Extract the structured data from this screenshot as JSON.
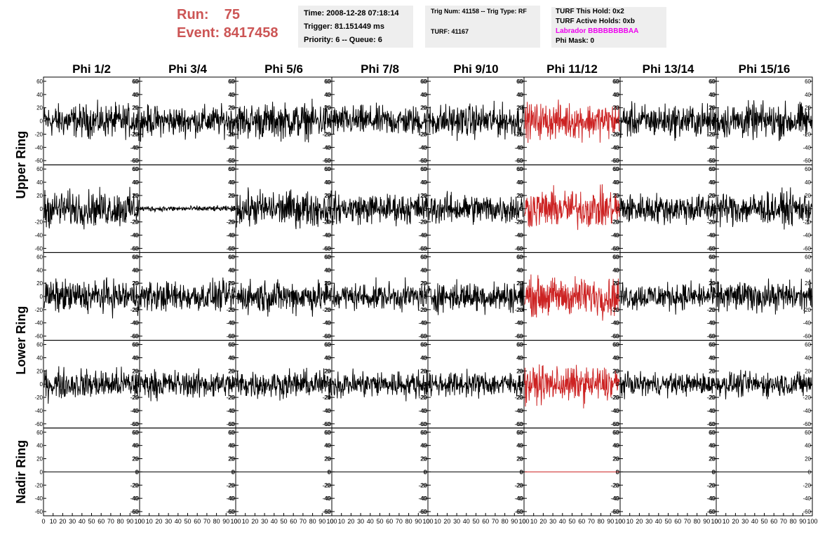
{
  "header": {
    "run_label": "Run:",
    "run_value": "75",
    "event_label": "Event:",
    "event_value": "8417458",
    "time": "Time: 2008-12-28 07:18:14",
    "trigger": "Trigger: 81.151449 ms",
    "priority": "Priority: 6 -- Queue: 6",
    "trig_num": "Trig Num: 41158 -- Trig Type: RF",
    "turf": "TURF: 41167",
    "turf_hold": "TURF This Hold: 0x2",
    "turf_active": "TURF Active Holds: 0xb",
    "labrador": "Labrador BBBBBBBBAA",
    "phi_mask": "Phi Mask: 0"
  },
  "colors": {
    "run_text": "#cc5555",
    "labrador_text": "#ee00ee",
    "trace_default": "#000000",
    "trace_highlight": "#cc2222",
    "info_background": "#eeeeee"
  },
  "chart_data": {
    "type": "line",
    "columns": [
      "Phi 1/2",
      "Phi 3/4",
      "Phi 5/6",
      "Phi 7/8",
      "Phi 9/10",
      "Phi 11/12",
      "Phi 13/14",
      "Phi 15/16"
    ],
    "ring_labels": [
      "Upper Ring",
      "Lower Ring",
      "Nadir Ring"
    ],
    "rows": 5,
    "highlighted_column": "Phi 11/12",
    "ylim": [
      -60,
      60
    ],
    "yticks": [
      "60",
      "40",
      "20",
      "0",
      "-20",
      "-40",
      "-60"
    ],
    "xlim": [
      0,
      100
    ],
    "xticks": [
      "0",
      "10",
      "20",
      "30",
      "40",
      "50",
      "60",
      "70",
      "80",
      "90",
      "100"
    ],
    "approx_rms_by_row": [
      [
        12,
        11,
        13,
        11,
        12,
        13,
        12,
        13
      ],
      [
        13,
        2,
        13,
        11,
        11,
        14,
        11,
        12
      ],
      [
        12,
        11,
        12,
        10,
        11,
        14,
        10,
        11
      ],
      [
        11,
        10,
        10,
        10,
        9,
        13,
        8,
        9
      ],
      [
        0,
        0,
        0,
        0,
        0,
        0,
        0,
        0
      ]
    ]
  }
}
